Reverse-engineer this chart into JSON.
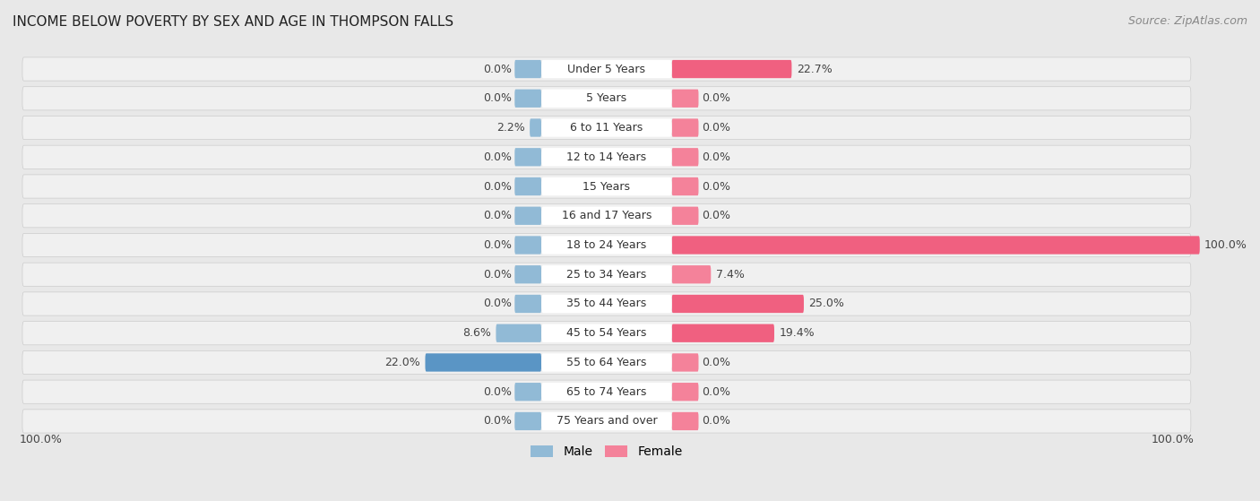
{
  "title": "INCOME BELOW POVERTY BY SEX AND AGE IN THOMPSON FALLS",
  "source": "Source: ZipAtlas.com",
  "categories": [
    "Under 5 Years",
    "5 Years",
    "6 to 11 Years",
    "12 to 14 Years",
    "15 Years",
    "16 and 17 Years",
    "18 to 24 Years",
    "25 to 34 Years",
    "35 to 44 Years",
    "45 to 54 Years",
    "55 to 64 Years",
    "65 to 74 Years",
    "75 Years and over"
  ],
  "male_values": [
    0.0,
    0.0,
    2.2,
    0.0,
    0.0,
    0.0,
    0.0,
    0.0,
    0.0,
    8.6,
    22.0,
    0.0,
    0.0
  ],
  "female_values": [
    22.7,
    0.0,
    0.0,
    0.0,
    0.0,
    0.0,
    100.0,
    7.4,
    25.0,
    19.4,
    0.0,
    0.0,
    0.0
  ],
  "male_color": "#91BAD6",
  "female_color": "#F4829A",
  "male_color_strong": "#5A95C5",
  "female_color_strong": "#F06080",
  "bg_color": "#e8e8e8",
  "row_bg_color": "#e0e0e0",
  "max_value": 100.0,
  "legend_male": "Male",
  "legend_female": "Female",
  "title_fontsize": 11,
  "source_fontsize": 9,
  "bar_label_fontsize": 9,
  "cat_label_fontsize": 9
}
